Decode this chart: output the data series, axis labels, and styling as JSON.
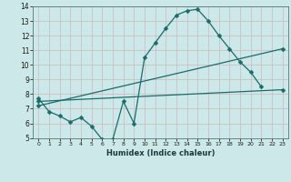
{
  "xlabel": "Humidex (Indice chaleur)",
  "xlim": [
    -0.5,
    23.5
  ],
  "ylim": [
    5,
    14
  ],
  "yticks": [
    5,
    6,
    7,
    8,
    9,
    10,
    11,
    12,
    13,
    14
  ],
  "xticks": [
    0,
    1,
    2,
    3,
    4,
    5,
    6,
    7,
    8,
    9,
    10,
    11,
    12,
    13,
    14,
    15,
    16,
    17,
    18,
    19,
    20,
    21,
    22,
    23
  ],
  "bg_color": "#cce8e8",
  "grid_color": "#b8d8d0",
  "line_color": "#1a6b6b",
  "line1_x": [
    0,
    1,
    2,
    3,
    4,
    5,
    6,
    7,
    8,
    9,
    10,
    11,
    12,
    13,
    14,
    15,
    16,
    17,
    18,
    19,
    20,
    21
  ],
  "line1_y": [
    7.7,
    6.8,
    6.5,
    6.1,
    6.4,
    5.8,
    4.9,
    4.9,
    7.5,
    6.0,
    10.5,
    11.5,
    12.5,
    13.4,
    13.7,
    13.8,
    13.0,
    12.0,
    11.1,
    10.2,
    9.5,
    8.5
  ],
  "line2_x": [
    0,
    23
  ],
  "line2_y": [
    7.5,
    8.3
  ],
  "line3_x": [
    0,
    23
  ],
  "line3_y": [
    7.2,
    11.1
  ],
  "markersize": 2.5,
  "linewidth": 0.9
}
